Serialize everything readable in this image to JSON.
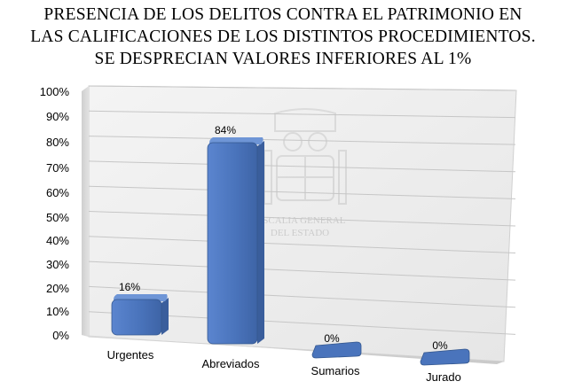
{
  "chart_data": {
    "type": "bar",
    "title_lines": [
      "PRESENCIA DE LOS DELITOS CONTRA EL PATRIMONIO EN",
      "LAS CALIFICACIONES DE LOS DISTINTOS PROCEDIMIENTOS.",
      "SE DESPRECIAN VALORES INFERIORES AL 1%"
    ],
    "categories": [
      "Urgentes",
      "Abreviados",
      "Sumarios",
      "Jurado"
    ],
    "values": [
      16,
      84,
      0,
      0
    ],
    "data_labels": [
      "16%",
      "84%",
      "0%",
      "0%"
    ],
    "ylim": [
      0,
      100
    ],
    "y_ticks": [
      "0%",
      "10%",
      "20%",
      "30%",
      "40%",
      "50%",
      "60%",
      "70%",
      "80%",
      "90%",
      "100%"
    ],
    "bar_color": "#4a74bc",
    "three_d": true,
    "grid": true,
    "legend": "none"
  },
  "watermark": {
    "text_lines": [
      "FISCALIA GENERAL",
      "DEL ESTADO"
    ]
  }
}
